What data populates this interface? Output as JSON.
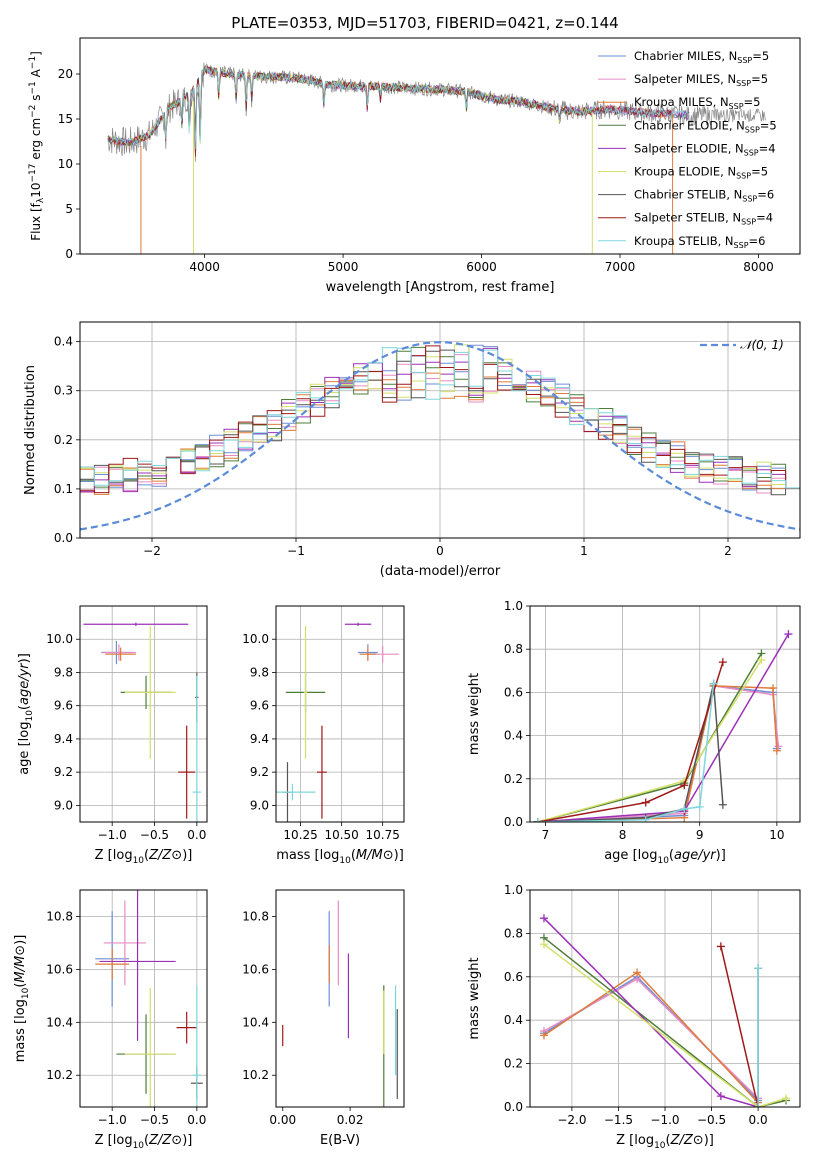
{
  "figure": {
    "title": "PLATE=0353, MJD=51703, FIBERID=0421, z=0.144"
  },
  "colors": {
    "Chabrier MILES": "#6b8ed6",
    "Salpeter MILES": "#e88bc4",
    "Kroupa MILES": "#e07b39",
    "Chabrier ELODIE": "#4e7d3a",
    "Salpeter ELODIE": "#9b30b8",
    "Kroupa ELODIE": "#d4e06a",
    "Chabrier STELIB": "#555555",
    "Salpeter STELIB": "#a01818",
    "Kroupa STELIB": "#7fd6dc",
    "normal": "#5b8bd9",
    "data": "#888888"
  },
  "chart_data": [
    {
      "id": "spectrum",
      "type": "line",
      "title": "PLATE=0353, MJD=51703, FIBERID=0421, z=0.144",
      "xlabel": "wavelength [Angstrom, rest frame]",
      "ylabel_parts": {
        "pre": "Flux [f",
        "sub": "λ",
        "mid": "10",
        "sup1": "−17",
        "post": " erg cm",
        "sup2": "−2",
        "post2": " s",
        "sup3": "−1",
        "post3": " A",
        "sup4": "−1",
        "end": "]"
      },
      "xlim": [
        3100,
        8300
      ],
      "ylim": [
        0,
        24
      ],
      "xticks": [
        4000,
        5000,
        6000,
        7000,
        8000
      ],
      "yticks": [
        0,
        5,
        10,
        15,
        20
      ],
      "continuum": {
        "x": [
          3300,
          3450,
          3600,
          3750,
          3900,
          4000,
          4100,
          4300,
          4500,
          4700,
          4900,
          5100,
          5300,
          5500,
          5700,
          5900,
          6100,
          6300,
          6500,
          6700,
          6900,
          7100,
          7300,
          7500
        ],
        "y": [
          12.8,
          12.3,
          13.2,
          16.3,
          17.8,
          20.5,
          20.2,
          19.8,
          19.7,
          19.5,
          18.8,
          18.7,
          18.6,
          18.4,
          18.3,
          18.0,
          17.2,
          16.9,
          16.2,
          15.8,
          16.1,
          15.8,
          15.6,
          15.4
        ]
      },
      "legend": [
        {
          "name": "Chabrier MILES",
          "n": "5"
        },
        {
          "name": "Salpeter MILES",
          "n": "5"
        },
        {
          "name": "Kroupa MILES",
          "n": "5"
        },
        {
          "name": "Chabrier ELODIE",
          "n": "5"
        },
        {
          "name": "Salpeter ELODIE",
          "n": "4"
        },
        {
          "name": "Kroupa ELODIE",
          "n": "5"
        },
        {
          "name": "Chabrier STELIB",
          "n": "6"
        },
        {
          "name": "Salpeter STELIB",
          "n": "4"
        },
        {
          "name": "Kroupa STELIB",
          "n": "6"
        }
      ],
      "legend_label_mid": ", N",
      "legend_label_sub": "SSP",
      "legend_label_eq": "="
    },
    {
      "id": "residuals",
      "type": "bar",
      "xlabel": "(data-model)/error",
      "ylabel": "Normed distribution",
      "xlim": [
        -2.5,
        2.5
      ],
      "ylim": [
        0,
        0.44
      ],
      "xticks": [
        -2,
        -1,
        0,
        1,
        2
      ],
      "yticks": [
        0.0,
        0.1,
        0.2,
        0.3,
        0.4
      ],
      "bin_width": 0.1,
      "legend": "𝒩(0, 1)",
      "grid": true
    },
    {
      "id": "age-Z",
      "type": "scatter",
      "xlabel": "Z [log10(Z/Z⊙)]",
      "ylabel": "age  [log10(age/yr)]",
      "xlim": [
        -1.38,
        0.12
      ],
      "ylim": [
        8.9,
        10.2
      ],
      "xticks": [
        -1.0,
        -0.5,
        0.0
      ],
      "yticks": [
        9.0,
        9.2,
        9.4,
        9.6,
        9.8,
        10.0
      ],
      "grid": true,
      "points": [
        {
          "model": "Chabrier MILES",
          "x": -0.95,
          "xerr": 0.18,
          "y": 9.92,
          "yerr": 0.07
        },
        {
          "model": "Salpeter MILES",
          "x": -0.92,
          "xerr": 0.2,
          "y": 9.92,
          "yerr": 0.05
        },
        {
          "model": "Kroupa MILES",
          "x": -0.9,
          "xerr": 0.18,
          "y": 9.91,
          "yerr": 0.04
        },
        {
          "model": "Chabrier ELODIE",
          "x": -0.6,
          "xerr": 0.3,
          "y": 9.68,
          "yerr": 0.1
        },
        {
          "model": "Salpeter ELODIE",
          "x": -0.72,
          "xerr": 0.62,
          "y": 10.09,
          "yerr": 0.01
        },
        {
          "model": "Kroupa ELODIE",
          "x": -0.55,
          "xerr": 0.3,
          "y": 9.68,
          "yerr": 0.4
        },
        {
          "model": "Chabrier STELIB",
          "x": 0.0,
          "xerr": 0.02,
          "y": 9.65,
          "yerr": 0.15
        },
        {
          "model": "Salpeter STELIB",
          "x": -0.12,
          "xerr": 0.1,
          "y": 9.2,
          "yerr": 0.28
        },
        {
          "model": "Kroupa STELIB",
          "x": 0.0,
          "xerr": 0.05,
          "y": 9.08,
          "yerr": 0.7
        }
      ]
    },
    {
      "id": "age-mass",
      "type": "scatter",
      "xlabel": "mass [log10(M/M⊙)]",
      "ylabel": "",
      "xlim": [
        10.1,
        10.88
      ],
      "ylim": [
        8.9,
        10.2
      ],
      "xticks": [
        10.25,
        10.5,
        10.75
      ],
      "tick_labels": [
        "10.25",
        "10.50",
        "10.75"
      ],
      "yticks": [
        9.0,
        9.2,
        9.4,
        9.6,
        9.8,
        10.0
      ],
      "grid": true,
      "points": [
        {
          "model": "Chabrier MILES",
          "x": 10.66,
          "xerr": 0.06,
          "y": 9.92,
          "yerr": 0.05
        },
        {
          "model": "Salpeter MILES",
          "x": 10.75,
          "xerr": 0.1,
          "y": 9.91,
          "yerr": 0.05
        },
        {
          "model": "Kroupa MILES",
          "x": 10.66,
          "xerr": 0.05,
          "y": 9.91,
          "yerr": 0.04
        },
        {
          "model": "Chabrier ELODIE",
          "x": 10.28,
          "xerr": 0.12,
          "y": 9.68,
          "yerr": 0.12
        },
        {
          "model": "Salpeter ELODIE",
          "x": 10.6,
          "xerr": 0.08,
          "y": 10.09,
          "yerr": 0.01
        },
        {
          "model": "Kroupa ELODIE",
          "x": 10.28,
          "xerr": 0.01,
          "y": 9.68,
          "yerr": 0.4
        },
        {
          "model": "Chabrier STELIB",
          "x": 10.17,
          "xerr": 0.03,
          "y": 9.08,
          "yerr": 0.18
        },
        {
          "model": "Salpeter STELIB",
          "x": 10.38,
          "xerr": 0.03,
          "y": 9.2,
          "yerr": 0.28
        },
        {
          "model": "Kroupa STELIB",
          "x": 10.2,
          "xerr": 0.14,
          "y": 9.08,
          "yerr": 0.05
        }
      ]
    },
    {
      "id": "weight-age",
      "type": "line",
      "xlabel": "age  [log10(age/yr)]",
      "ylabel": "mass weight",
      "xlim": [
        6.8,
        10.3
      ],
      "ylim": [
        0,
        1
      ],
      "xticks": [
        7,
        8,
        9,
        10
      ],
      "yticks": [
        0.0,
        0.2,
        0.4,
        0.6,
        0.8,
        1.0
      ],
      "grid": true,
      "series": [
        {
          "model": "Chabrier MILES",
          "x": [
            6.9,
            8.8,
            9.18,
            9.95,
            10.0
          ],
          "y": [
            0.0,
            0.03,
            0.63,
            0.6,
            0.34
          ]
        },
        {
          "model": "Salpeter MILES",
          "x": [
            6.9,
            8.8,
            9.18,
            9.95,
            10.02
          ],
          "y": [
            0.0,
            0.04,
            0.63,
            0.59,
            0.35
          ]
        },
        {
          "model": "Kroupa MILES",
          "x": [
            6.9,
            8.8,
            9.18,
            9.95,
            10.0
          ],
          "y": [
            0.0,
            0.02,
            0.63,
            0.62,
            0.33
          ]
        },
        {
          "model": "Chabrier ELODIE",
          "x": [
            6.9,
            8.8,
            9.8
          ],
          "y": [
            0.0,
            0.18,
            0.78
          ]
        },
        {
          "model": "Salpeter ELODIE",
          "x": [
            6.9,
            8.8,
            10.15
          ],
          "y": [
            0.0,
            0.05,
            0.87
          ]
        },
        {
          "model": "Kroupa ELODIE",
          "x": [
            6.9,
            8.8,
            9.8
          ],
          "y": [
            0.0,
            0.19,
            0.75
          ]
        },
        {
          "model": "Chabrier STELIB",
          "x": [
            6.9,
            8.3,
            8.8,
            9.18,
            9.3
          ],
          "y": [
            0.0,
            0.02,
            0.06,
            0.64,
            0.08
          ]
        },
        {
          "model": "Salpeter STELIB",
          "x": [
            6.9,
            8.3,
            8.8,
            9.3
          ],
          "y": [
            0.0,
            0.09,
            0.17,
            0.74
          ]
        },
        {
          "model": "Kroupa STELIB",
          "x": [
            6.9,
            8.3,
            8.8,
            9.0,
            9.18
          ],
          "y": [
            0.0,
            0.01,
            0.06,
            0.07,
            0.64
          ]
        }
      ]
    },
    {
      "id": "mass-Z",
      "type": "scatter",
      "xlabel": "Z [log10(Z/Z⊙)]",
      "ylabel": "mass [log10(M/M⊙)]",
      "xlim": [
        -1.38,
        0.12
      ],
      "ylim": [
        10.08,
        10.9
      ],
      "xticks": [
        -1.0,
        -0.5,
        0.0
      ],
      "yticks": [
        10.2,
        10.4,
        10.6,
        10.8
      ],
      "grid": true,
      "points": [
        {
          "model": "Chabrier MILES",
          "x": -1.0,
          "xerr": 0.2,
          "y": 10.64,
          "yerr": 0.18
        },
        {
          "model": "Salpeter MILES",
          "x": -0.85,
          "xerr": 0.25,
          "y": 10.7,
          "yerr": 0.16
        },
        {
          "model": "Kroupa MILES",
          "x": -1.0,
          "xerr": 0.2,
          "y": 10.62,
          "yerr": 0.06
        },
        {
          "model": "Chabrier ELODIE",
          "x": -0.6,
          "xerr": 0.35,
          "y": 10.28,
          "yerr": 0.15
        },
        {
          "model": "Salpeter ELODIE",
          "x": -0.7,
          "xerr": 0.45,
          "y": 10.63,
          "yerr": 0.3
        },
        {
          "model": "Kroupa ELODIE",
          "x": -0.55,
          "xerr": 0.3,
          "y": 10.28,
          "yerr": 0.25
        },
        {
          "model": "Chabrier STELIB",
          "x": 0.0,
          "xerr": 0.07,
          "y": 10.17,
          "yerr": 0.06
        },
        {
          "model": "Salpeter STELIB",
          "x": -0.12,
          "xerr": 0.12,
          "y": 10.38,
          "yerr": 0.06
        },
        {
          "model": "Kroupa STELIB",
          "x": 0.0,
          "xerr": 0.05,
          "y": 10.2,
          "yerr": 0.34
        }
      ]
    },
    {
      "id": "mass-EBV",
      "type": "scatter",
      "xlabel": "E(B-V)",
      "ylabel": "",
      "xlim": [
        -0.002,
        0.036
      ],
      "ylim": [
        10.08,
        10.9
      ],
      "xticks": [
        0.0,
        0.02
      ],
      "tick_labels": [
        "0.00",
        "0.02"
      ],
      "yticks": [
        10.2,
        10.4,
        10.6,
        10.8
      ],
      "grid": false,
      "points": [
        {
          "model": "Chabrier MILES",
          "x": 0.0138,
          "y": 10.64,
          "yerr": 0.18
        },
        {
          "model": "Salpeter MILES",
          "x": 0.0165,
          "y": 10.7,
          "yerr": 0.16
        },
        {
          "model": "Kroupa MILES",
          "x": 0.0138,
          "y": 10.62,
          "yerr": 0.07
        },
        {
          "model": "Chabrier ELODIE",
          "x": 0.03,
          "y": 10.28,
          "yerr": 0.26
        },
        {
          "model": "Salpeter ELODIE",
          "x": 0.0195,
          "y": 10.5,
          "yerr": 0.16
        },
        {
          "model": "Kroupa ELODIE",
          "x": 0.03,
          "y": 10.4,
          "yerr": 0.12
        },
        {
          "model": "Chabrier STELIB",
          "x": 0.034,
          "y": 10.28,
          "yerr": 0.17
        },
        {
          "model": "Salpeter STELIB",
          "x": 0.0,
          "y": 10.35,
          "yerr": 0.04
        },
        {
          "model": "Kroupa STELIB",
          "x": 0.0335,
          "y": 10.37,
          "yerr": 0.17
        }
      ]
    },
    {
      "id": "weight-Z",
      "type": "line",
      "xlabel": "Z [log10(Z/Z⊙)]",
      "ylabel": "mass weight",
      "xlim": [
        -2.45,
        0.45
      ],
      "ylim": [
        0,
        1
      ],
      "xticks": [
        -2.0,
        -1.5,
        -1.0,
        -0.5,
        0.0
      ],
      "yticks": [
        0.0,
        0.2,
        0.4,
        0.6,
        0.8,
        1.0
      ],
      "grid": true,
      "series": [
        {
          "model": "Chabrier MILES",
          "x": [
            -2.3,
            -1.3,
            0.0
          ],
          "y": [
            0.34,
            0.6,
            0.03
          ]
        },
        {
          "model": "Salpeter MILES",
          "x": [
            -2.3,
            -1.3,
            0.0
          ],
          "y": [
            0.35,
            0.59,
            0.04
          ]
        },
        {
          "model": "Kroupa MILES",
          "x": [
            -2.3,
            -1.3,
            0.0
          ],
          "y": [
            0.33,
            0.62,
            0.02
          ]
        },
        {
          "model": "Chabrier ELODIE",
          "x": [
            -2.3,
            0.0,
            0.3
          ],
          "y": [
            0.78,
            0.0,
            0.03
          ]
        },
        {
          "model": "Salpeter ELODIE",
          "x": [
            -2.3,
            -0.4,
            0.0
          ],
          "y": [
            0.87,
            0.05,
            0.0
          ]
        },
        {
          "model": "Kroupa ELODIE",
          "x": [
            -2.3,
            0.0,
            0.3
          ],
          "y": [
            0.75,
            0.0,
            0.04
          ]
        },
        {
          "model": "Chabrier STELIB",
          "x": [
            0.0,
            0.0
          ],
          "y": [
            0.0,
            0.64
          ]
        },
        {
          "model": "Salpeter STELIB",
          "x": [
            -0.4,
            0.0
          ],
          "y": [
            0.74,
            0.0
          ]
        },
        {
          "model": "Kroupa STELIB",
          "x": [
            0.0,
            0.0
          ],
          "y": [
            0.0,
            0.64
          ]
        }
      ]
    }
  ]
}
